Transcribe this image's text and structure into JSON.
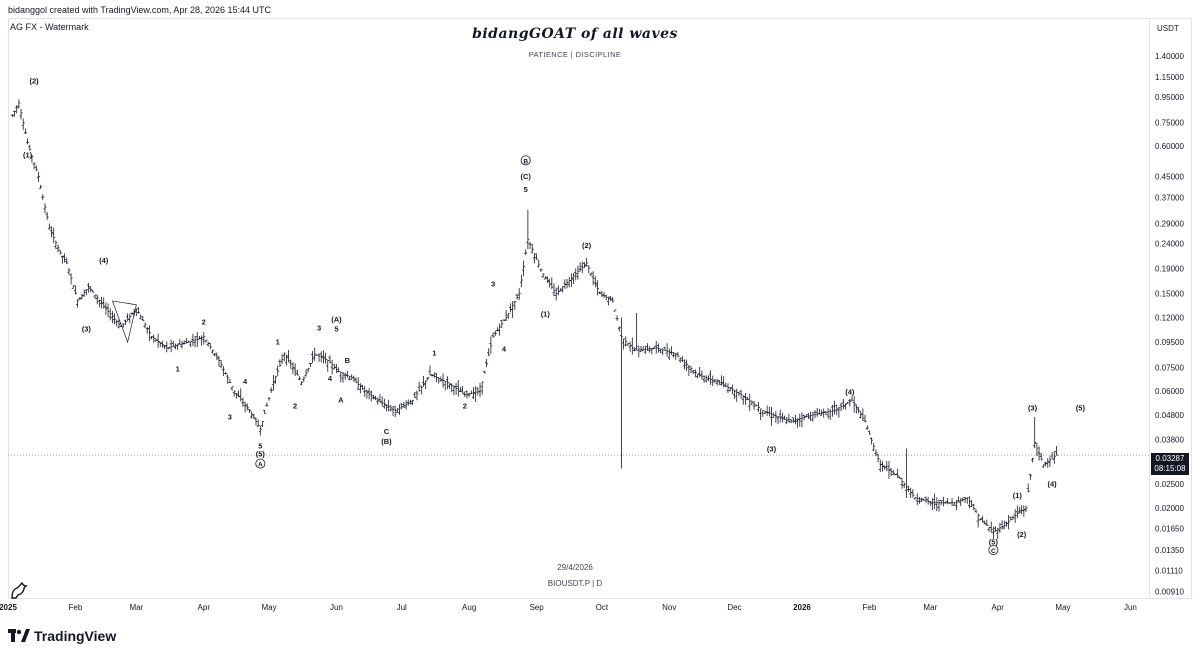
{
  "header": {
    "created_line": "bidanggol created with TradingView.com, Apr 28, 2026 15:44 UTC",
    "watermark_label": "AG FX - Watermark",
    "title": "bidangGOAT of all waves",
    "subtitle": "PATIENCE | DISCIPLINE"
  },
  "symbol_line": "BIOUSDT.P | D",
  "date_label": "29/4/2026",
  "currency": "USDT",
  "price_tag": {
    "price": "0.03287",
    "countdown": "08:15:08"
  },
  "brand": "TradingView",
  "colors": {
    "bars": "#131722",
    "grid": "#e0e3eb",
    "tag_bg": "#131722",
    "dotted": "#787b86"
  },
  "chart_data": {
    "type": "ohlc",
    "scale": "log",
    "ylim": [
      0.0085,
      2.0
    ],
    "y_ticks": [
      "1.40000",
      "1.15000",
      "0.95000",
      "0.75000",
      "0.60000",
      "0.45000",
      "0.37000",
      "0.29000",
      "0.24000",
      "0.19000",
      "0.15000",
      "0.12000",
      "0.09500",
      "0.07500",
      "0.06000",
      "0.04800",
      "0.03800",
      "0.02500",
      "0.02000",
      "0.01650",
      "0.01350",
      "0.01110",
      "0.00910"
    ],
    "x_ticks": [
      "2025",
      "Feb",
      "Mar",
      "Apr",
      "May",
      "Jun",
      "Jul",
      "Aug",
      "Sep",
      "Oct",
      "Nov",
      "Dec",
      "2026",
      "Feb",
      "Mar",
      "Apr",
      "May",
      "Jun"
    ],
    "x_range": [
      "2025-01-01",
      "2026-06-10"
    ],
    "last_price": 0.03287,
    "price_path": [
      [
        "2025-01-03",
        0.8
      ],
      [
        "2025-01-06",
        0.9
      ],
      [
        "2025-01-10",
        0.62
      ],
      [
        "2025-01-15",
        0.45
      ],
      [
        "2025-01-20",
        0.28
      ],
      [
        "2025-01-25",
        0.22
      ],
      [
        "2025-01-28",
        0.2
      ],
      [
        "2025-02-02",
        0.14
      ],
      [
        "2025-02-07",
        0.16
      ],
      [
        "2025-02-15",
        0.13
      ],
      [
        "2025-02-22",
        0.11
      ],
      [
        "2025-03-01",
        0.13
      ],
      [
        "2025-03-08",
        0.1
      ],
      [
        "2025-03-15",
        0.09
      ],
      [
        "2025-03-25",
        0.095
      ],
      [
        "2025-04-01",
        0.1
      ],
      [
        "2025-04-08",
        0.08
      ],
      [
        "2025-04-15",
        0.06
      ],
      [
        "2025-04-22",
        0.05
      ],
      [
        "2025-04-27",
        0.042
      ],
      [
        "2025-05-03",
        0.065
      ],
      [
        "2025-05-08",
        0.085
      ],
      [
        "2025-05-12",
        0.075
      ],
      [
        "2025-05-16",
        0.065
      ],
      [
        "2025-05-22",
        0.085
      ],
      [
        "2025-05-28",
        0.08
      ],
      [
        "2025-06-02",
        0.072
      ],
      [
        "2025-06-08",
        0.068
      ],
      [
        "2025-06-14",
        0.06
      ],
      [
        "2025-06-20",
        0.055
      ],
      [
        "2025-06-28",
        0.05
      ],
      [
        "2025-07-06",
        0.055
      ],
      [
        "2025-07-14",
        0.07
      ],
      [
        "2025-07-22",
        0.065
      ],
      [
        "2025-07-30",
        0.058
      ],
      [
        "2025-08-06",
        0.06
      ],
      [
        "2025-08-12",
        0.1
      ],
      [
        "2025-08-18",
        0.12
      ],
      [
        "2025-08-24",
        0.15
      ],
      [
        "2025-08-28",
        0.25
      ],
      [
        "2025-09-04",
        0.18
      ],
      [
        "2025-09-10",
        0.15
      ],
      [
        "2025-09-16",
        0.17
      ],
      [
        "2025-09-24",
        0.2
      ],
      [
        "2025-09-30",
        0.15
      ],
      [
        "2025-10-06",
        0.14
      ],
      [
        "2025-10-10",
        0.1
      ],
      [
        "2025-10-16",
        0.088
      ],
      [
        "2025-10-26",
        0.09
      ],
      [
        "2025-11-04",
        0.085
      ],
      [
        "2025-11-14",
        0.07
      ],
      [
        "2025-11-24",
        0.065
      ],
      [
        "2025-12-04",
        0.058
      ],
      [
        "2025-12-14",
        0.05
      ],
      [
        "2025-12-26",
        0.045
      ],
      [
        "2026-01-06",
        0.048
      ],
      [
        "2026-01-16",
        0.05
      ],
      [
        "2026-01-24",
        0.055
      ],
      [
        "2026-01-30",
        0.045
      ],
      [
        "2026-02-06",
        0.03
      ],
      [
        "2026-02-14",
        0.027
      ],
      [
        "2026-02-22",
        0.022
      ],
      [
        "2026-03-02",
        0.021
      ],
      [
        "2026-03-12",
        0.021
      ],
      [
        "2026-03-18",
        0.022
      ],
      [
        "2026-03-24",
        0.018
      ],
      [
        "2026-03-30",
        0.016
      ],
      [
        "2026-04-04",
        0.017
      ],
      [
        "2026-04-10",
        0.019
      ],
      [
        "2026-04-14",
        0.02
      ],
      [
        "2026-04-18",
        0.037
      ],
      [
        "2026-04-22",
        0.03
      ],
      [
        "2026-04-28",
        0.03287
      ]
    ],
    "spikes": [
      {
        "date": "2025-08-28",
        "high": 0.33
      },
      {
        "date": "2025-10-10",
        "low": 0.029,
        "high": 0.12
      },
      {
        "date": "2025-10-17",
        "high": 0.125
      },
      {
        "date": "2026-04-18",
        "high": 0.047
      },
      {
        "date": "2026-02-18",
        "high": 0.035
      }
    ],
    "annotations": [
      {
        "text": "(2)",
        "date": "2025-01-13",
        "price": 1.08
      },
      {
        "text": "(1)",
        "date": "2025-01-10",
        "price": 0.54
      },
      {
        "text": "(4)",
        "date": "2025-02-14",
        "price": 0.2
      },
      {
        "text": "(3)",
        "date": "2025-02-06",
        "price": 0.105
      },
      {
        "text": "2",
        "date": "2025-04-01",
        "price": 0.112
      },
      {
        "text": "1",
        "date": "2025-03-20",
        "price": 0.072
      },
      {
        "text": "4",
        "date": "2025-04-20",
        "price": 0.064
      },
      {
        "text": "3",
        "date": "2025-04-13",
        "price": 0.046
      },
      {
        "text": "5",
        "date": "2025-04-27",
        "price": 0.035
      },
      {
        "text": "(5)",
        "date": "2025-04-27",
        "price": 0.0325
      },
      {
        "text": "A",
        "date": "2025-04-27",
        "price": 0.0295,
        "circled": true
      },
      {
        "text": "1",
        "date": "2025-05-05",
        "price": 0.093
      },
      {
        "text": "2",
        "date": "2025-05-13",
        "price": 0.051
      },
      {
        "text": "3",
        "date": "2025-05-24",
        "price": 0.106
      },
      {
        "text": "4",
        "date": "2025-05-29",
        "price": 0.066
      },
      {
        "text": "(A)",
        "date": "2025-06-01",
        "price": 0.115
      },
      {
        "text": "5",
        "date": "2025-06-01",
        "price": 0.105
      },
      {
        "text": "B",
        "date": "2025-06-06",
        "price": 0.078
      },
      {
        "text": "A",
        "date": "2025-06-03",
        "price": 0.054
      },
      {
        "text": "C",
        "date": "2025-06-24",
        "price": 0.04
      },
      {
        "text": "(B)",
        "date": "2025-06-24",
        "price": 0.0365
      },
      {
        "text": "1",
        "date": "2025-07-16",
        "price": 0.084
      },
      {
        "text": "2",
        "date": "2025-07-30",
        "price": 0.051
      },
      {
        "text": "3",
        "date": "2025-08-12",
        "price": 0.16
      },
      {
        "text": "4",
        "date": "2025-08-17",
        "price": 0.087
      },
      {
        "text": "B",
        "date": "2025-08-27",
        "price": 0.51,
        "circled": true
      },
      {
        "text": "(C)",
        "date": "2025-08-27",
        "price": 0.44
      },
      {
        "text": "5",
        "date": "2025-08-27",
        "price": 0.39
      },
      {
        "text": "(1)",
        "date": "2025-09-05",
        "price": 0.121
      },
      {
        "text": "(2)",
        "date": "2025-09-24",
        "price": 0.23
      },
      {
        "text": "(3)",
        "date": "2025-12-18",
        "price": 0.034
      },
      {
        "text": "(4)",
        "date": "2026-01-23",
        "price": 0.058
      },
      {
        "text": "(3)",
        "date": "2026-04-17",
        "price": 0.05
      },
      {
        "text": "(5)",
        "date": "2026-05-09",
        "price": 0.05
      },
      {
        "text": "(4)",
        "date": "2026-04-26",
        "price": 0.0245
      },
      {
        "text": "(1)",
        "date": "2026-04-10",
        "price": 0.022
      },
      {
        "text": "(2)",
        "date": "2026-04-12",
        "price": 0.0152
      },
      {
        "text": "(5)",
        "date": "2026-03-30",
        "price": 0.0142
      },
      {
        "text": "C",
        "date": "2026-03-30",
        "price": 0.0131,
        "circled": true
      }
    ]
  }
}
